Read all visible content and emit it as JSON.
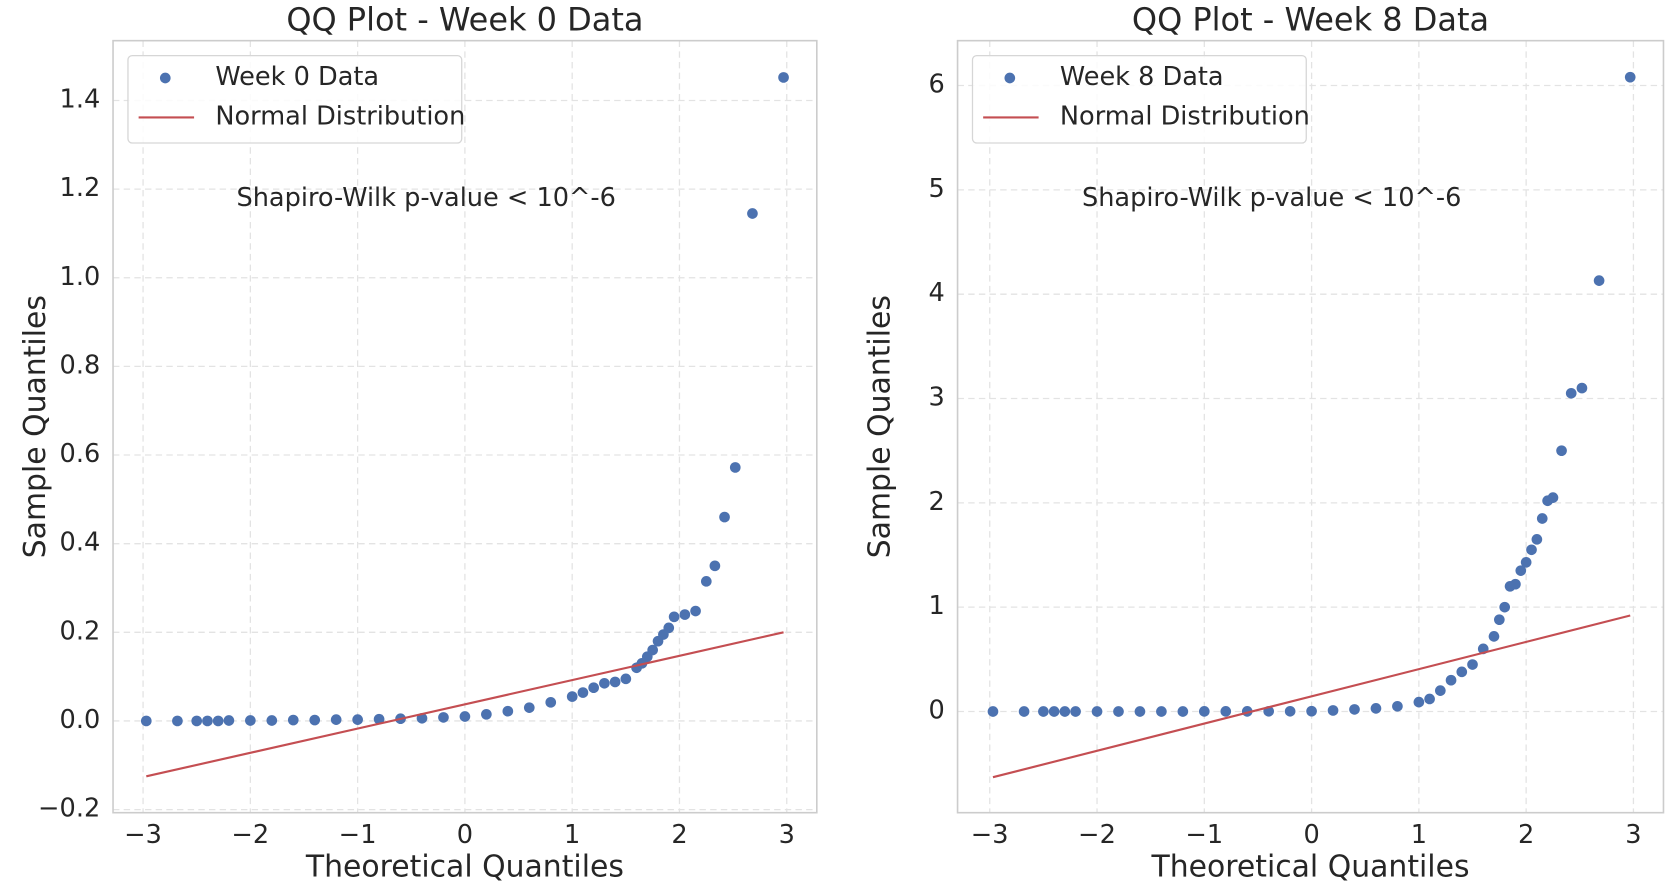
{
  "chart_data": [
    {
      "type": "scatter",
      "title": "QQ Plot - Week 0 Data",
      "xlabel": "Theoretical Quantiles",
      "ylabel": "Sample Quantiles",
      "annotation": "Shapiro-Wilk p-value < 10^-6",
      "grid": true,
      "legend": "upper left",
      "xlim": [
        -3.28,
        3.28
      ],
      "ylim": [
        -0.207,
        1.535
      ],
      "xticks": [
        {
          "value": -3,
          "label": "−3"
        },
        {
          "value": -2,
          "label": "−2"
        },
        {
          "value": -1,
          "label": "−1"
        },
        0,
        1,
        2,
        3
      ],
      "yticks": [
        {
          "value": -0.2,
          "label": "−0.2"
        },
        {
          "value": 0,
          "label": "0.0"
        },
        0.2,
        0.4,
        0.6,
        0.8,
        {
          "value": 1,
          "label": "1.0"
        },
        1.2,
        1.4
      ],
      "series": [
        {
          "name": "Week 0 Data",
          "color": "#4c72b0",
          "kind": "points",
          "x": [
            -2.97,
            -2.68,
            -2.5,
            -2.4,
            -2.3,
            -2.2,
            -2.0,
            -1.8,
            -1.6,
            -1.4,
            -1.2,
            -1.0,
            -0.8,
            -0.6,
            -0.4,
            -0.2,
            0,
            0.2,
            0.4,
            0.6,
            0.8,
            1.0,
            1.1,
            1.2,
            1.3,
            1.4,
            1.5,
            1.6,
            1.65,
            1.7,
            1.75,
            1.8,
            1.85,
            1.9,
            1.95,
            2.05,
            2.15,
            2.25,
            2.33,
            2.42,
            2.52,
            2.68,
            2.97
          ],
          "values": [
            0,
            0,
            0,
            0,
            0,
            0.001,
            0.001,
            0.001,
            0.002,
            0.002,
            0.003,
            0.003,
            0.004,
            0.005,
            0.006,
            0.008,
            0.01,
            0.015,
            0.022,
            0.03,
            0.042,
            0.055,
            0.064,
            0.075,
            0.085,
            0.088,
            0.095,
            0.12,
            0.13,
            0.145,
            0.16,
            0.18,
            0.195,
            0.21,
            0.235,
            0.24,
            0.248,
            0.315,
            0.35,
            0.46,
            0.572,
            1.145,
            1.452
          ]
        },
        {
          "name": "Normal Distribution",
          "color": "#c44e52",
          "kind": "line",
          "x": [
            -2.97,
            2.97
          ],
          "values": [
            -0.125,
            0.2
          ]
        }
      ]
    },
    {
      "type": "scatter",
      "title": "QQ Plot - Week 8 Data",
      "xlabel": "Theoretical Quantiles",
      "ylabel": "Sample Quantiles",
      "annotation": "Shapiro-Wilk p-value < 10^-6",
      "grid": true,
      "legend": "upper left",
      "xlim": [
        -3.3,
        3.28
      ],
      "ylim": [
        -0.97,
        6.43
      ],
      "xticks": [
        {
          "value": -3,
          "label": "−3"
        },
        {
          "value": -2,
          "label": "−2"
        },
        {
          "value": -1,
          "label": "−1"
        },
        0,
        1,
        2,
        3
      ],
      "yticks": [
        0,
        1,
        2,
        3,
        4,
        5,
        6
      ],
      "series": [
        {
          "name": "Week 8 Data",
          "color": "#4c72b0",
          "kind": "points",
          "x": [
            -2.97,
            -2.68,
            -2.5,
            -2.4,
            -2.3,
            -2.2,
            -2.0,
            -1.8,
            -1.6,
            -1.4,
            -1.2,
            -1.0,
            -0.8,
            -0.6,
            -0.4,
            -0.2,
            0,
            0.2,
            0.4,
            0.6,
            0.8,
            1.0,
            1.1,
            1.2,
            1.3,
            1.4,
            1.5,
            1.6,
            1.7,
            1.75,
            1.8,
            1.85,
            1.9,
            1.95,
            2.0,
            2.05,
            2.1,
            2.15,
            2.2,
            2.25,
            2.33,
            2.42,
            2.52,
            2.68,
            2.97
          ],
          "values": [
            0,
            0,
            0,
            0,
            0,
            0,
            0,
            0,
            0,
            0,
            0,
            0.001,
            0.001,
            0.001,
            0.002,
            0.002,
            0.003,
            0.01,
            0.02,
            0.03,
            0.05,
            0.09,
            0.12,
            0.2,
            0.3,
            0.38,
            0.45,
            0.6,
            0.72,
            0.88,
            1.0,
            1.2,
            1.22,
            1.35,
            1.43,
            1.55,
            1.65,
            1.85,
            2.02,
            2.05,
            2.5,
            3.05,
            3.1,
            4.13,
            6.08
          ]
        },
        {
          "name": "Normal Distribution",
          "color": "#c44e52",
          "kind": "line",
          "x": [
            -2.97,
            2.97
          ],
          "values": [
            -0.63,
            0.92
          ]
        }
      ]
    }
  ]
}
